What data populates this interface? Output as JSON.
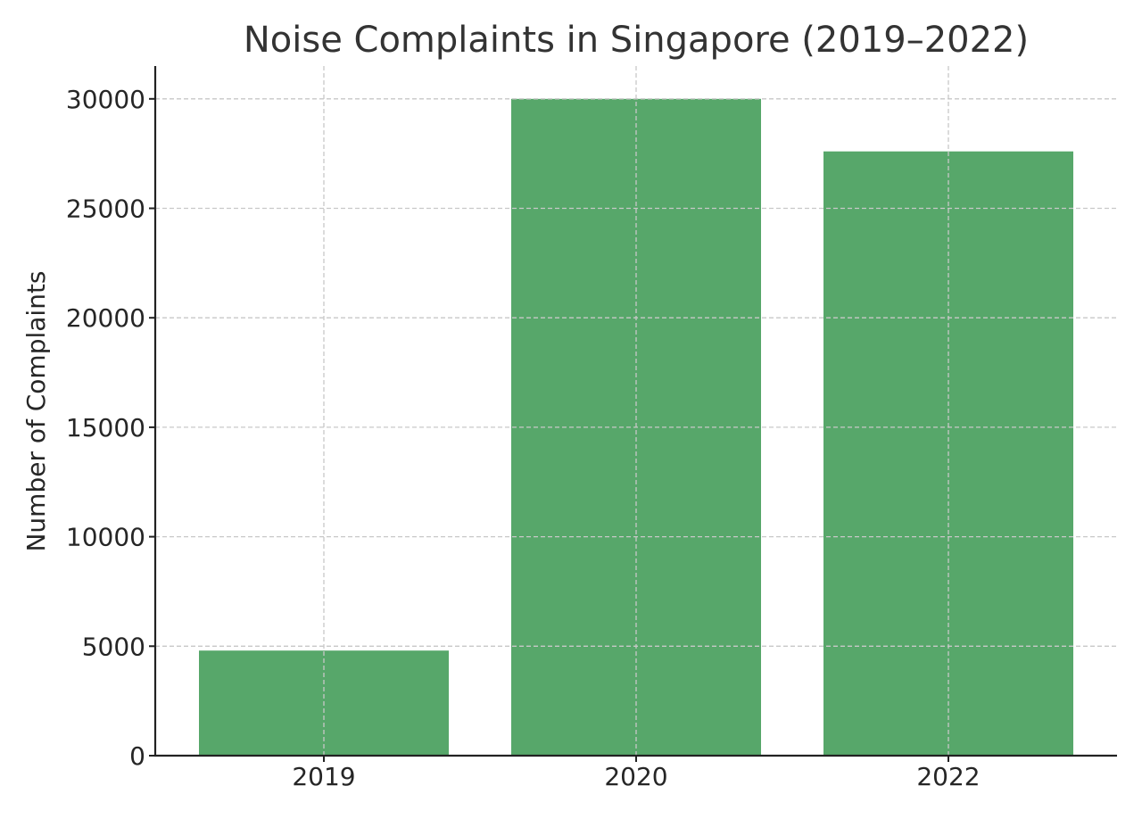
{
  "chart_data": {
    "type": "bar",
    "title": "Noise Complaints in Singapore (2019–2022)",
    "xlabel": "",
    "ylabel": "Number of Complaints",
    "categories": [
      "2019",
      "2020",
      "2022"
    ],
    "values": [
      4800,
      30000,
      27600
    ],
    "ylim": [
      0,
      31500
    ],
    "yticks": [
      0,
      5000,
      10000,
      15000,
      20000,
      25000,
      30000
    ],
    "grid": true,
    "bar_color": "#57a76a"
  }
}
